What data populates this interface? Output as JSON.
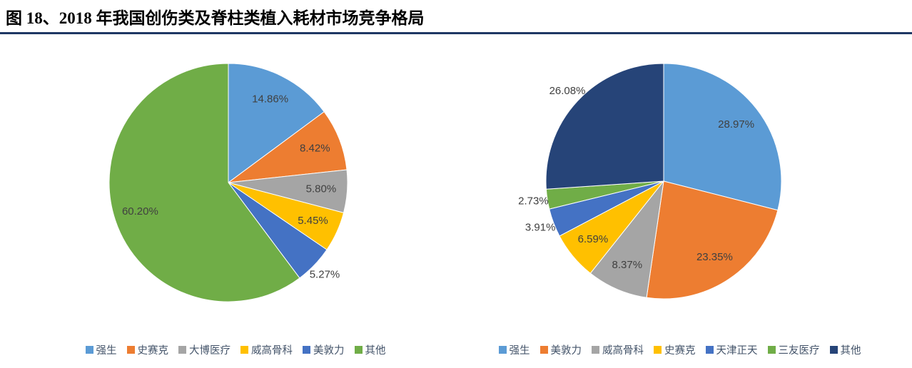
{
  "figure": {
    "title": "图 18、2018 年我国创伤类及脊柱类植入耗材市场竞争格局",
    "underline_color": "#1F3864"
  },
  "palette": {
    "blue": "#5B9BD5",
    "orange": "#ED7D31",
    "gray": "#A5A5A5",
    "yellow": "#FFC000",
    "dark_blue": "#4472C4",
    "green": "#70AD47",
    "navy": "#264478",
    "label_text": "#404040",
    "legend_text": "#44546A"
  },
  "chart_data": [
    {
      "type": "pie",
      "name": "trauma-implants-market-share",
      "start_angle_deg": 0,
      "direction": "clockwise",
      "legend_position": "bottom",
      "slices": [
        {
          "label": "强生",
          "value": 14.86,
          "display": "14.86%",
          "color": "#5B9BD5",
          "label_pos": "in"
        },
        {
          "label": "史赛克",
          "value": 8.42,
          "display": "8.42%",
          "color": "#ED7D31",
          "label_pos": "in"
        },
        {
          "label": "大博医疗",
          "value": 5.8,
          "display": "5.80%",
          "color": "#A5A5A5",
          "label_pos": "in"
        },
        {
          "label": "威高骨科",
          "value": 5.45,
          "display": "5.45%",
          "color": "#FFC000",
          "label_pos": "in"
        },
        {
          "label": "美敦力",
          "value": 5.27,
          "display": "5.27%",
          "color": "#4472C4",
          "label_pos": "out"
        },
        {
          "label": "其他",
          "value": 60.2,
          "display": "60.20%",
          "color": "#70AD47",
          "label_pos": "in"
        }
      ]
    },
    {
      "type": "pie",
      "name": "spine-implants-market-share",
      "start_angle_deg": 0,
      "direction": "clockwise",
      "legend_position": "bottom",
      "slices": [
        {
          "label": "强生",
          "value": 28.97,
          "display": "28.97%",
          "color": "#5B9BD5",
          "label_pos": "in"
        },
        {
          "label": "美敦力",
          "value": 23.35,
          "display": "23.35%",
          "color": "#ED7D31",
          "label_pos": "in"
        },
        {
          "label": "威高骨科",
          "value": 8.37,
          "display": "8.37%",
          "color": "#A5A5A5",
          "label_pos": "in"
        },
        {
          "label": "史赛克",
          "value": 6.59,
          "display": "6.59%",
          "color": "#FFC000",
          "label_pos": "in"
        },
        {
          "label": "天津正天",
          "value": 3.91,
          "display": "3.91%",
          "color": "#4472C4",
          "label_pos": "out"
        },
        {
          "label": "三友医疗",
          "value": 2.73,
          "display": "2.73%",
          "color": "#70AD47",
          "label_pos": "out"
        },
        {
          "label": "其他",
          "value": 26.08,
          "display": "26.08%",
          "color": "#264478",
          "label_pos": "out"
        }
      ]
    }
  ]
}
